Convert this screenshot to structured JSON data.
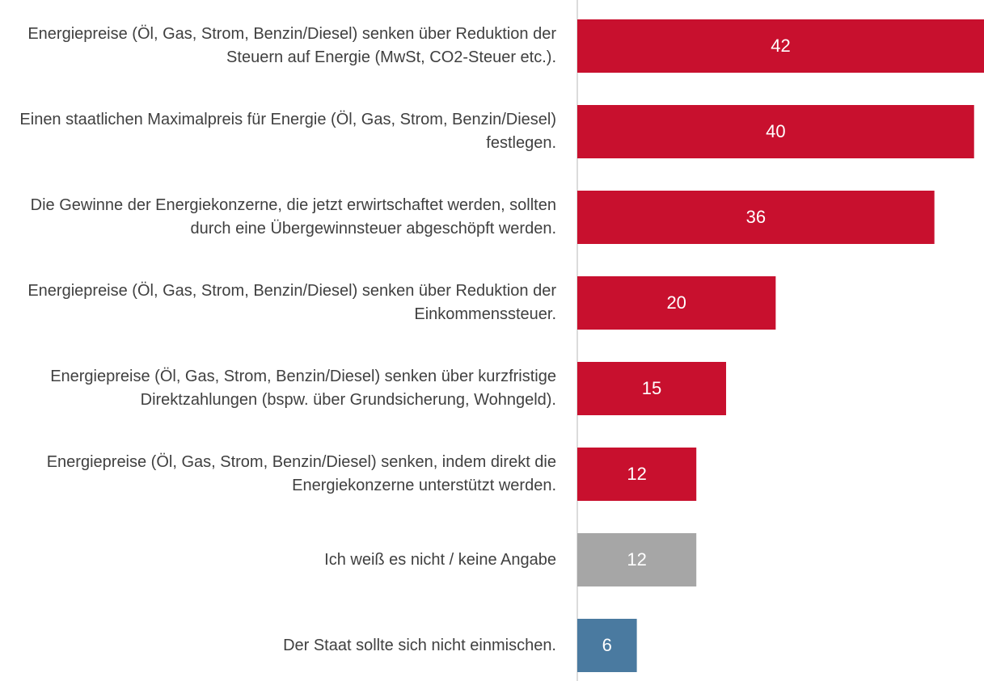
{
  "chart_data": {
    "type": "barh",
    "categories": [
      "Energiepreise (Öl, Gas, Strom, Benzin/Diesel) senken über Reduktion der Steuern auf Energie (MwSt, CO2-Steuer etc.).",
      "Einen staatlichen Maximalpreis für Energie (Öl, Gas, Strom, Benzin/Diesel) festlegen.",
      "Die Gewinne der Energiekonzerne, die jetzt erwirtschaftet werden, sollten durch eine Übergewinnsteuer abgeschöpft werden.",
      "Energiepreise (Öl, Gas, Strom, Benzin/Diesel) senken über Reduktion der Einkommenssteuer.",
      "Energiepreise (Öl, Gas, Strom, Benzin/Diesel) senken über kurzfristige Direktzahlungen (bspw. über Grundsicherung, Wohngeld).",
      "Energiepreise (Öl, Gas, Strom, Benzin/Diesel) senken, indem direkt die Energiekonzerne unterstützt werden.",
      "Ich weiß es nicht / keine Angabe",
      "Der Staat sollte sich nicht einmischen."
    ],
    "values": [
      42,
      40,
      36,
      20,
      15,
      12,
      12,
      6
    ],
    "colors": [
      "#c8102e",
      "#c8102e",
      "#c8102e",
      "#c8102e",
      "#c8102e",
      "#c8102e",
      "#a6a6a6",
      "#4a7aa0"
    ],
    "xlim": [
      0,
      41
    ]
  }
}
